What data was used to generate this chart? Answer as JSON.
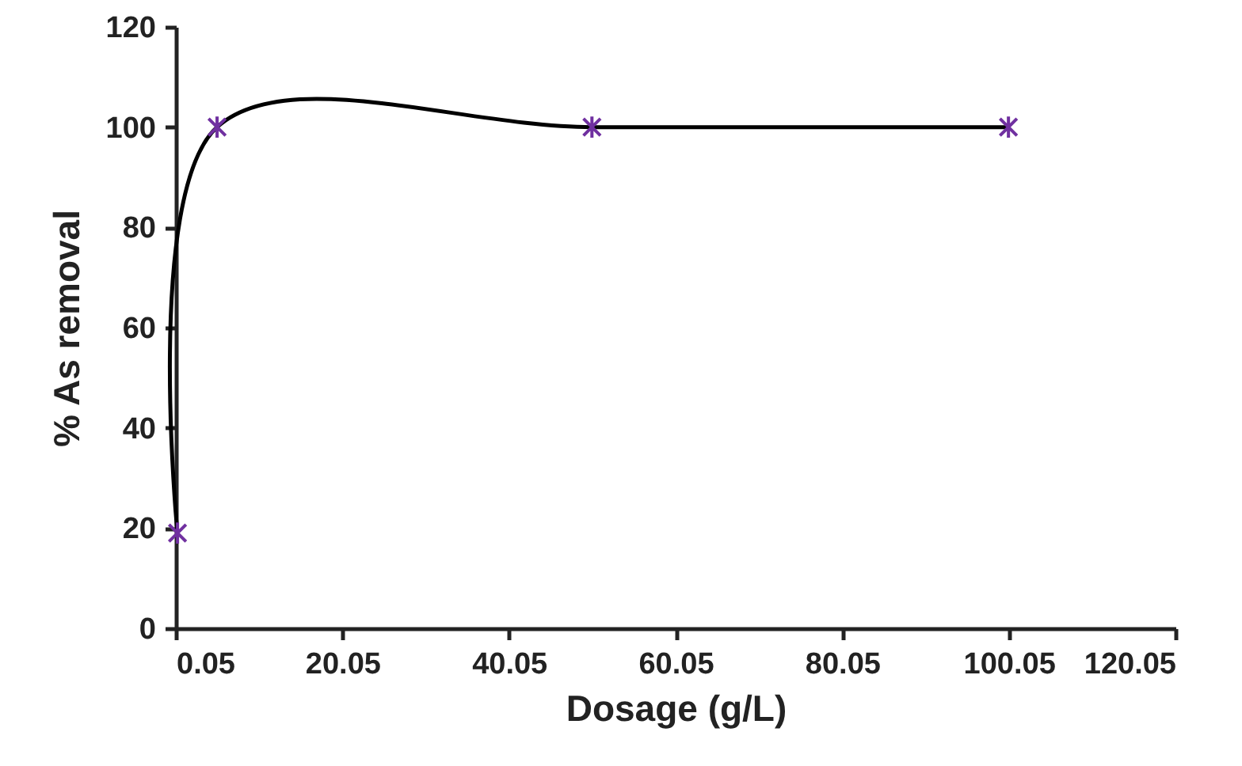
{
  "chart_data": {
    "type": "line",
    "xlabel": "Dosage (g/L)",
    "ylabel": "% As removal",
    "x": [
      0.25,
      5,
      50,
      100
    ],
    "series": [
      {
        "color": "#000000",
        "values": [
          19,
          100,
          100,
          100
        ]
      },
      {
        "type": "scatter",
        "color": "#7030a0",
        "marker": "cross",
        "values": [
          19,
          100,
          100,
          100
        ]
      }
    ],
    "xlim": [
      0.05,
      120.05
    ],
    "xticks": [
      0.05,
      20.05,
      40.05,
      60.05,
      80.05,
      100.05,
      120.05
    ],
    "ylim": [
      0,
      120
    ],
    "yticks": [
      0,
      20,
      40,
      60,
      80,
      100,
      120
    ],
    "grid": false,
    "line_style": "solid"
  }
}
